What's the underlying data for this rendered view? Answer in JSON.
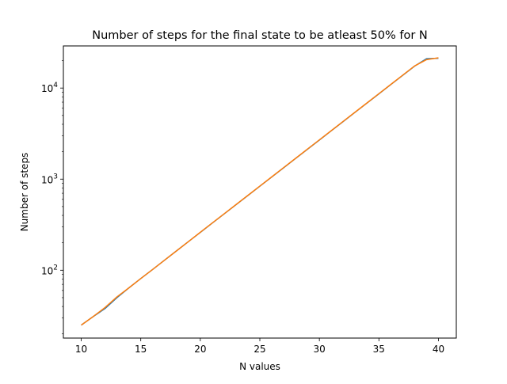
{
  "chart_data": {
    "type": "line",
    "title": "Number of steps for the final state to be atleast 50% for N",
    "xlabel": "N values",
    "ylabel": "Number of steps",
    "xlim": [
      8.5,
      41.5
    ],
    "ylim": [
      18,
      29000
    ],
    "yscale": "log",
    "grid": false,
    "x_ticks": [
      10,
      15,
      20,
      25,
      30,
      35,
      40
    ],
    "y_ticks": [
      {
        "value": 100,
        "base": "10",
        "exp": "2"
      },
      {
        "value": 1000,
        "base": "10",
        "exp": "3"
      },
      {
        "value": 10000,
        "base": "10",
        "exp": "4"
      }
    ],
    "series": [
      {
        "color": "#1f77b4",
        "x": [
          10,
          11,
          12,
          13,
          14,
          15,
          16,
          17,
          18,
          19,
          20,
          21,
          22,
          23,
          24,
          25,
          26,
          27,
          28,
          29,
          30,
          31,
          32,
          33,
          34,
          35,
          36,
          37,
          38,
          39,
          40
        ],
        "values": [
          25,
          31,
          38,
          50,
          64,
          81,
          102,
          129,
          163,
          206,
          260,
          329,
          415,
          524,
          662,
          836,
          1056,
          1334,
          1685,
          2128,
          2688,
          3395,
          4288,
          5416,
          6841,
          8640,
          10913,
          13784,
          17410,
          21000,
          21200
        ]
      },
      {
        "color": "#ff7f0e",
        "x": [
          10,
          11,
          12,
          13,
          14,
          15,
          16,
          17,
          18,
          19,
          20,
          21,
          22,
          23,
          24,
          25,
          26,
          27,
          28,
          29,
          30,
          31,
          32,
          33,
          34,
          35,
          36,
          37,
          38,
          39,
          40
        ],
        "values": [
          25,
          31,
          39,
          51,
          64,
          81,
          102,
          129,
          163,
          206,
          261,
          330,
          416,
          526,
          664,
          839,
          1060,
          1339,
          1691,
          2136,
          2698,
          3408,
          4305,
          5437,
          6867,
          8673,
          10955,
          13837,
          17477,
          20500,
          21500
        ]
      }
    ]
  }
}
